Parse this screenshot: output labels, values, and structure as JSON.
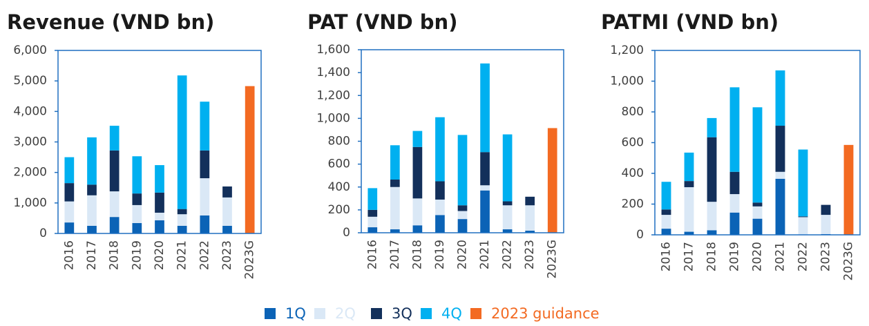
{
  "chart_data": [
    {
      "type": "bar",
      "stacked": true,
      "title": "Revenue (VND bn)",
      "categories": [
        "2016",
        "2017",
        "2018",
        "2019",
        "2020",
        "2021",
        "2022",
        "2023",
        "2023G"
      ],
      "ylim": [
        0,
        6000
      ],
      "yticks": [
        0,
        {
          "value": 1000,
          "label": "1,000"
        },
        {
          "value": 2000,
          "label": "2,000"
        },
        {
          "value": 3000,
          "label": "3,000"
        },
        {
          "value": 4000,
          "label": "4,000"
        },
        {
          "value": 5000,
          "label": "5,000"
        },
        {
          "value": 6000,
          "label": "6,000"
        }
      ],
      "series": [
        {
          "values": [
            360,
            250,
            540,
            340,
            430,
            250,
            590,
            250,
            null
          ]
        },
        {
          "values": [
            690,
            1000,
            840,
            590,
            250,
            380,
            1220,
            930,
            null
          ]
        },
        {
          "values": [
            600,
            350,
            1340,
            380,
            660,
            170,
            910,
            360,
            null
          ]
        },
        {
          "values": [
            850,
            1550,
            810,
            1220,
            900,
            4380,
            1600,
            null,
            null
          ]
        },
        {
          "values": [
            null,
            null,
            null,
            null,
            null,
            null,
            null,
            null,
            4830
          ]
        }
      ]
    },
    {
      "type": "bar",
      "stacked": true,
      "title": "PAT (VND bn)",
      "categories": [
        "2016",
        "2017",
        "2018",
        "2019",
        "2020",
        "2021",
        "2022",
        "2023",
        "2023G"
      ],
      "ylim": [
        0,
        1600
      ],
      "yticks": [
        0,
        200,
        400,
        600,
        800,
        {
          "value": 1000,
          "label": "1,000"
        },
        {
          "value": 1200,
          "label": "1,200"
        },
        {
          "value": 1400,
          "label": "1,400"
        },
        {
          "value": 1600,
          "label": "1,600"
        }
      ],
      "series": [
        {
          "values": [
            48,
            30,
            65,
            155,
            120,
            370,
            30,
            18,
            null
          ]
        },
        {
          "values": [
            92,
            370,
            235,
            135,
            70,
            45,
            210,
            222,
            null
          ]
        },
        {
          "values": [
            60,
            65,
            450,
            160,
            50,
            290,
            35,
            75,
            null
          ]
        },
        {
          "values": [
            190,
            300,
            140,
            560,
            615,
            775,
            585,
            null,
            null
          ]
        },
        {
          "values": [
            null,
            null,
            null,
            null,
            null,
            null,
            null,
            null,
            915
          ]
        }
      ]
    },
    {
      "type": "bar",
      "stacked": true,
      "title": "PATMI (VND bn)",
      "categories": [
        "2016",
        "2017",
        "2018",
        "2019",
        "2020",
        "2021",
        "2022",
        "2023",
        "2023G"
      ],
      "ylim": [
        0,
        1200
      ],
      "yticks": [
        0,
        200,
        400,
        600,
        800,
        {
          "value": 1000,
          "label": "1,000"
        },
        {
          "value": 1200,
          "label": "1,200"
        }
      ],
      "series": [
        {
          "values": [
            40,
            20,
            30,
            145,
            105,
            365,
            2,
            5,
            null
          ]
        },
        {
          "values": [
            90,
            290,
            185,
            120,
            80,
            45,
            113,
            125,
            null
          ]
        },
        {
          "values": [
            35,
            40,
            420,
            145,
            25,
            300,
            5,
            65,
            null
          ]
        },
        {
          "values": [
            180,
            185,
            125,
            550,
            620,
            360,
            435,
            null,
            null
          ]
        },
        {
          "values": [
            null,
            null,
            null,
            null,
            null,
            null,
            null,
            null,
            585
          ]
        }
      ]
    }
  ],
  "legend": [
    {
      "name": "1Q",
      "color": "#0b63b6"
    },
    {
      "name": "2Q",
      "color": "#dae8f6"
    },
    {
      "name": "3Q",
      "color": "#13305b"
    },
    {
      "name": "4Q",
      "color": "#00b0f0"
    },
    {
      "name": "2023 guidance",
      "color": "#f36a22"
    }
  ]
}
